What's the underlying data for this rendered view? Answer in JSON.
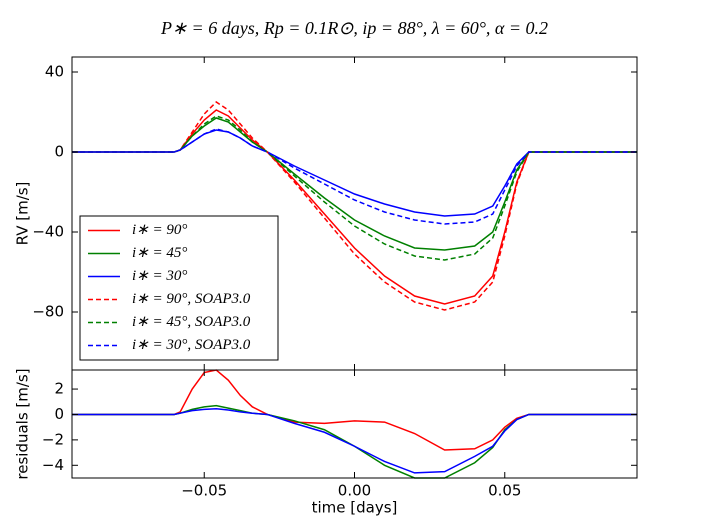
{
  "chart_data": [
    {
      "type": "line",
      "title": "P∗ = 6 days, Rp = 0.1R⊙, ip = 88°, λ = 60°, α = 0.2",
      "ylabel": "RV [m/s]",
      "x": [
        -0.094,
        -0.06,
        -0.058,
        -0.054,
        -0.05,
        -0.046,
        -0.042,
        -0.038,
        -0.034,
        -0.029,
        -0.02,
        -0.01,
        0,
        0.01,
        0.02,
        0.03,
        0.04,
        0.046,
        0.05,
        0.054,
        0.058,
        0.094
      ],
      "xlim": [
        -0.094,
        0.094
      ],
      "ylim": [
        -109,
        47.5
      ],
      "yticks": [
        {
          "value": -80,
          "label": "−80"
        },
        {
          "value": -40,
          "label": "−40"
        },
        0,
        40
      ],
      "legend": "lower left",
      "series": [
        {
          "name": "i∗ = 90°",
          "color": "#ff0000",
          "linestyle": "solid",
          "values": [
            0,
            0,
            1,
            9,
            16,
            21,
            18,
            12,
            6,
            0,
            -14,
            -31,
            -48,
            -62,
            -72,
            -76,
            -72,
            -62,
            -40,
            -15,
            0,
            0
          ]
        },
        {
          "name": "i∗ = 45°",
          "color": "#008000",
          "linestyle": "solid",
          "values": [
            0,
            0,
            1,
            8,
            13,
            17,
            15,
            10,
            5,
            0,
            -11,
            -23,
            -34,
            -42,
            -48,
            -49,
            -47,
            -40,
            -25,
            -9,
            0,
            0
          ]
        },
        {
          "name": "i∗ = 30°",
          "color": "#0000ff",
          "linestyle": "solid",
          "values": [
            0,
            0,
            1,
            5,
            9,
            11,
            10,
            7,
            3,
            0,
            -7,
            -14,
            -21,
            -26,
            -30,
            -32,
            -31,
            -27,
            -17,
            -6,
            0,
            0
          ]
        },
        {
          "name": "i∗ = 90°, SOAP3.0",
          "color": "#ff0000",
          "linestyle": "dashed",
          "values": [
            0,
            0,
            1,
            10,
            19,
            25,
            21,
            14,
            7,
            0,
            -15,
            -33,
            -51,
            -65,
            -75,
            -79,
            -75,
            -65,
            -42,
            -16,
            0,
            0
          ]
        },
        {
          "name": "i∗ = 45°, SOAP3.0",
          "color": "#008000",
          "linestyle": "dashed",
          "values": [
            0,
            0,
            1,
            8,
            14,
            18,
            16,
            11,
            5,
            0,
            -12,
            -25,
            -37,
            -46,
            -52,
            -54,
            -51,
            -43,
            -27,
            -10,
            0,
            0
          ]
        },
        {
          "name": "i∗ = 30°, SOAP3.0",
          "color": "#0000ff",
          "linestyle": "dashed",
          "values": [
            0,
            0,
            1,
            5,
            9,
            11.5,
            10,
            7,
            3,
            0,
            -8,
            -16,
            -24,
            -30,
            -34,
            -36,
            -35,
            -31,
            -19,
            -7,
            0,
            0
          ]
        }
      ]
    },
    {
      "type": "line",
      "ylabel": "residuals [m/s]",
      "xlabel": "time [days]",
      "x": [
        -0.094,
        -0.06,
        -0.058,
        -0.054,
        -0.05,
        -0.046,
        -0.042,
        -0.038,
        -0.034,
        -0.029,
        -0.02,
        -0.01,
        0,
        0.01,
        0.02,
        0.03,
        0.04,
        0.046,
        0.05,
        0.054,
        0.058,
        0.094
      ],
      "xlim": [
        -0.094,
        0.094
      ],
      "xticks": [
        {
          "value": -0.05,
          "label": "−0.05"
        },
        {
          "value": 0,
          "label": "0.00"
        },
        0.05
      ],
      "ylim": [
        -5,
        3.5
      ],
      "yticks": [
        {
          "value": -4,
          "label": "−4"
        },
        {
          "value": -2,
          "label": "−2"
        },
        0,
        2
      ],
      "series": [
        {
          "color": "#ff0000",
          "values": [
            0,
            0,
            0.2,
            2,
            3.3,
            3.5,
            2.7,
            1.5,
            0.6,
            0,
            -0.6,
            -0.7,
            -0.5,
            -0.6,
            -1.5,
            -2.8,
            -2.7,
            -2,
            -1,
            -0.3,
            0,
            0
          ]
        },
        {
          "color": "#008000",
          "values": [
            0,
            0,
            0.1,
            0.4,
            0.6,
            0.7,
            0.5,
            0.3,
            0.1,
            0,
            -0.5,
            -1.2,
            -2.5,
            -4,
            -5,
            -5,
            -3.8,
            -2.6,
            -1.2,
            -0.4,
            0,
            0
          ]
        },
        {
          "color": "#0000ff",
          "values": [
            0,
            0,
            0.1,
            0.3,
            0.4,
            0.45,
            0.35,
            0.2,
            0.1,
            0,
            -0.7,
            -1.4,
            -2.5,
            -3.7,
            -4.6,
            -4.5,
            -3.3,
            -2.5,
            -1.3,
            -0.4,
            0,
            0
          ]
        }
      ]
    }
  ]
}
